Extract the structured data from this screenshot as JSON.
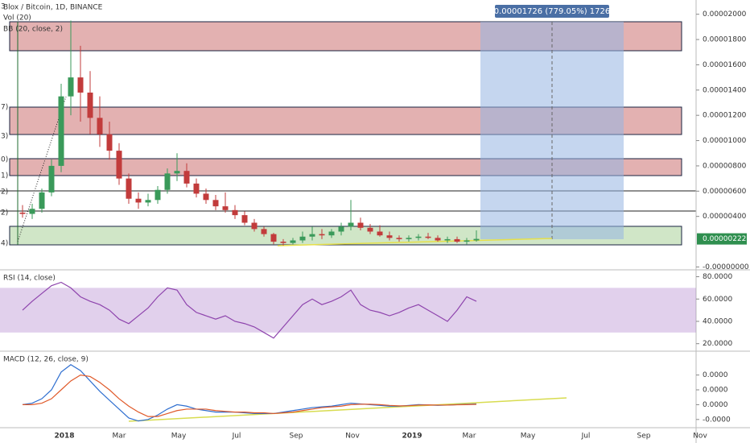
{
  "header": {
    "title": "Blox / Bitcoin, 1D, BINANCE",
    "indicators": [
      "Vol (20)",
      "BB (20, close, 2)"
    ]
  },
  "left_labels": [
    "3",
    "7)",
    "3)",
    "0)",
    "1)",
    "2)",
    "2)",
    "4)"
  ],
  "measure_label": "0.00001726 (779.05%) 1726",
  "last_price": {
    "value": 2.22e-06,
    "label": "0.00000222"
  },
  "price_axis": {
    "ylim": [
      -1e-07,
      2.1e-05
    ],
    "yticks": [
      {
        "value": 2e-05,
        "label": "0.00002000"
      },
      {
        "value": 1.8e-05,
        "label": "0.00001800"
      },
      {
        "value": 1.6e-05,
        "label": "0.00001600"
      },
      {
        "value": 1.4e-05,
        "label": "0.00001400"
      },
      {
        "value": 1.2e-05,
        "label": "0.00001200"
      },
      {
        "value": 1e-05,
        "label": "0.00001000"
      },
      {
        "value": 8e-06,
        "label": "0.00000800"
      },
      {
        "value": 6e-06,
        "label": "0.00000600"
      },
      {
        "value": 4e-06,
        "label": "0.00000400"
      },
      {
        "value": 0,
        "label": "-0.00000000"
      }
    ]
  },
  "candles": [
    [
      4.3e-06,
      4.9e-06,
      3.9e-06,
      4.2e-06
    ],
    [
      4.2e-06,
      5e-06,
      3.8e-06,
      4.6e-06
    ],
    [
      4.6e-06,
      6.2e-06,
      4.3e-06,
      5.9e-06
    ],
    [
      5.9e-06,
      8.5e-06,
      5.6e-06,
      8e-06
    ],
    [
      8e-06,
      1.45e-05,
      7.5e-06,
      1.35e-05
    ],
    [
      1.35e-05,
      1.95e-05,
      1.2e-05,
      1.5e-05
    ],
    [
      1.5e-05,
      1.75e-05,
      1.15e-05,
      1.38e-05
    ],
    [
      1.38e-05,
      1.55e-05,
      1.05e-05,
      1.18e-05
    ],
    [
      1.18e-05,
      1.35e-05,
      9.5e-06,
      1.05e-05
    ],
    [
      1.05e-05,
      1.15e-05,
      8.5e-06,
      9.2e-06
    ],
    [
      9.2e-06,
      9.8e-06,
      6.5e-06,
      7e-06
    ],
    [
      7e-06,
      7.4e-06,
      5e-06,
      5.4e-06
    ],
    [
      5.4e-06,
      5.9e-06,
      4.6e-06,
      5.1e-06
    ],
    [
      5.1e-06,
      5.8e-06,
      4.8e-06,
      5.3e-06
    ],
    [
      5.3e-06,
      6.4e-06,
      5e-06,
      6.1e-06
    ],
    [
      6.1e-06,
      7.8e-06,
      5.8e-06,
      7.4e-06
    ],
    [
      7.4e-06,
      9e-06,
      6.8e-06,
      7.6e-06
    ],
    [
      7.6e-06,
      8.2e-06,
      6.3e-06,
      6.6e-06
    ],
    [
      6.6e-06,
      7e-06,
      5.5e-06,
      5.8e-06
    ],
    [
      5.8e-06,
      6.2e-06,
      5e-06,
      5.3e-06
    ],
    [
      5.3e-06,
      5.7e-06,
      4.5e-06,
      4.8e-06
    ],
    [
      4.8e-06,
      5.9e-06,
      4.3e-06,
      4.5e-06
    ],
    [
      4.5e-06,
      4.9e-06,
      3.8e-06,
      4.1e-06
    ],
    [
      4.1e-06,
      4.4e-06,
      3.3e-06,
      3.5e-06
    ],
    [
      3.5e-06,
      3.8e-06,
      2.8e-06,
      3e-06
    ],
    [
      3e-06,
      3.2e-06,
      2.4e-06,
      2.6e-06
    ],
    [
      2.6e-06,
      2.7e-06,
      1.8e-06,
      2e-06
    ],
    [
      2e-06,
      2.2e-06,
      1.7e-06,
      1.9e-06
    ],
    [
      1.9e-06,
      2.3e-06,
      1.8e-06,
      2.1e-06
    ],
    [
      2.1e-06,
      2.8e-06,
      1.9e-06,
      2.4e-06
    ],
    [
      2.4e-06,
      3.2e-06,
      2.1e-06,
      2.6e-06
    ],
    [
      2.6e-06,
      3e-06,
      2.2e-06,
      2.5e-06
    ],
    [
      2.5e-06,
      3e-06,
      2.3e-06,
      2.8e-06
    ],
    [
      2.8e-06,
      3.5e-06,
      2.5e-06,
      3.2e-06
    ],
    [
      3.2e-06,
      5.3e-06,
      2.9e-06,
      3.5e-06
    ],
    [
      3.5e-06,
      3.9e-06,
      2.9e-06,
      3.1e-06
    ],
    [
      3.1e-06,
      3.4e-06,
      2.6e-06,
      2.8e-06
    ],
    [
      2.8e-06,
      3.3e-06,
      2.4e-06,
      2.5e-06
    ],
    [
      2.5e-06,
      2.8e-06,
      2.1e-06,
      2.3e-06
    ],
    [
      2.3e-06,
      2.5e-06,
      2e-06,
      2.2e-06
    ],
    [
      2.2e-06,
      2.5e-06,
      2e-06,
      2.3e-06
    ],
    [
      2.3e-06,
      2.6e-06,
      2.1e-06,
      2.4e-06
    ],
    [
      2.4e-06,
      2.7e-06,
      2.2e-06,
      2.3e-06
    ],
    [
      2.3e-06,
      2.5e-06,
      2e-06,
      2.1e-06
    ],
    [
      2.1e-06,
      2.4e-06,
      1.9e-06,
      2.2e-06
    ],
    [
      2.2e-06,
      2.4e-06,
      1.9e-06,
      2e-06
    ],
    [
      2e-06,
      2.3e-06,
      1.8e-06,
      2.1e-06
    ],
    [
      2.1e-06,
      2.9e-06,
      2e-06,
      2.22e-06
    ]
  ],
  "rsi": {
    "title": "RSI (14, close)",
    "ylim": [
      14,
      84
    ],
    "yticks": [
      {
        "value": 80,
        "label": "80.0000"
      },
      {
        "value": 60,
        "label": "60.0000"
      },
      {
        "value": 40,
        "label": "40.0000"
      },
      {
        "value": 20,
        "label": "20.0000"
      }
    ],
    "values": [
      50,
      58,
      65,
      72,
      75,
      70,
      62,
      58,
      55,
      50,
      42,
      38,
      45,
      52,
      62,
      70,
      68,
      55,
      48,
      45,
      42,
      45,
      40,
      38,
      35,
      30,
      25,
      35,
      45,
      55,
      60,
      55,
      58,
      62,
      68,
      55,
      50,
      48,
      45,
      48,
      52,
      55,
      50,
      45,
      40,
      50,
      62,
      58
    ]
  },
  "macd": {
    "title": "MACD (12, 26, close, 9)",
    "ylim": [
      -1.5e-06,
      3.5e-06
    ],
    "yticks": [
      {
        "value": 2e-06,
        "label": "0.0000"
      },
      {
        "value": 1e-06,
        "label": "0.0000"
      },
      {
        "value": 0,
        "label": "0.0000"
      },
      {
        "value": -1e-06,
        "label": "-0.0000"
      }
    ],
    "macd": [
      0,
      1e-07,
      4e-07,
      1e-06,
      2.2e-06,
      2.7e-06,
      2.3e-06,
      1.6e-06,
      9e-07,
      3e-07,
      -3e-07,
      -9e-07,
      -1.1e-06,
      -1e-06,
      -7e-07,
      -3e-07,
      0,
      -1e-07,
      -3e-07,
      -4e-07,
      -5e-07,
      -5e-07,
      -5e-07,
      -5.5e-07,
      -6e-07,
      -6e-07,
      -6e-07,
      -5e-07,
      -4e-07,
      -3e-07,
      -2e-07,
      -1.5e-07,
      -1e-07,
      0,
      1e-07,
      5e-08,
      0,
      -5e-08,
      -1e-07,
      -1e-07,
      -5e-08,
      0,
      -2e-08,
      -5e-08,
      -3e-08,
      0,
      2e-08,
      5e-08
    ],
    "signal": [
      0,
      0,
      1e-07,
      4e-07,
      1e-06,
      1.6e-06,
      2e-06,
      1.9e-06,
      1.5e-06,
      1e-06,
      4e-07,
      -1e-07,
      -5e-07,
      -8e-07,
      -8e-07,
      -6e-07,
      -4e-07,
      -3e-07,
      -3e-07,
      -3e-07,
      -4e-07,
      -4.5e-07,
      -5e-07,
      -5e-07,
      -5.5e-07,
      -5.5e-07,
      -6e-07,
      -5.5e-07,
      -5e-07,
      -4e-07,
      -3e-07,
      -2e-07,
      -1.5e-07,
      -1e-07,
      0,
      3e-08,
      3e-08,
      0,
      -5e-08,
      -8e-08,
      -7e-08,
      -3e-08,
      -2e-08,
      -3e-08,
      -3e-08,
      -1e-08,
      0,
      2e-08
    ]
  },
  "time_axis": [
    "2018",
    "Mar",
    "May",
    "Jul",
    "Sep",
    "Nov",
    "2019",
    "Mar",
    "May",
    "Jul",
    "Sep",
    "Nov"
  ]
}
